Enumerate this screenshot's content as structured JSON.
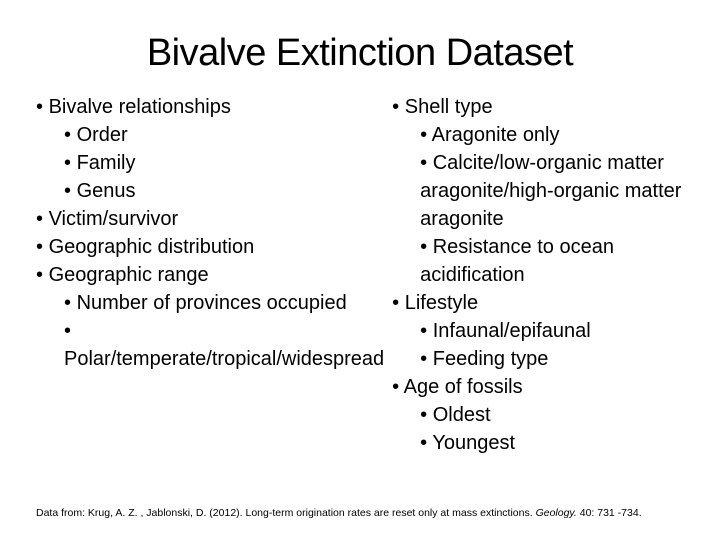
{
  "title": "Bivalve Extinction Dataset",
  "left": {
    "i0": "Bivalve relationships",
    "i0a": "Order",
    "i0b": "Family",
    "i0c": "Genus",
    "i1": "Victim/survivor",
    "i2": "Geographic distribution",
    "i3": "Geographic range",
    "i3a": "Number of provinces occupied",
    "i3b": "Polar/temperate/tropical/widespread"
  },
  "right": {
    "i0": "Shell type",
    "i0a": "Aragonite only",
    "i0b": "Calcite/low-organic matter aragonite/high-organic matter aragonite",
    "i0c": "Resistance to ocean acidification",
    "i1": "Lifestyle",
    "i1a": "Infaunal/epifaunal",
    "i1b": "Feeding type",
    "i2": "Age of fossils",
    "i2a": "Oldest",
    "i2b": "Youngest"
  },
  "citation": {
    "prefix": "Data from: Krug, A. Z. , Jablonski, D. (2012). Long-term origination rates are reset only at mass extinctions. ",
    "journal": "Geology. ",
    "suffix": "40: 731 -734."
  }
}
